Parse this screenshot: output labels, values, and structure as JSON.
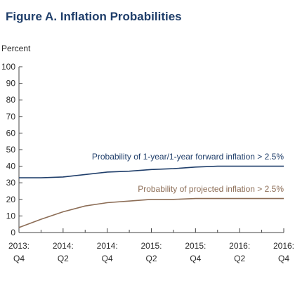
{
  "figure_title": "Figure A. Inflation Probabilities",
  "chart_data": {
    "type": "line",
    "title": "Figure A. Inflation Probabilities",
    "ylabel": "Percent",
    "ylim": [
      0,
      100
    ],
    "yticks": [
      0,
      10,
      20,
      30,
      40,
      50,
      60,
      70,
      80,
      90,
      100
    ],
    "xlim": [
      0,
      12
    ],
    "x_tick_labels": [
      {
        "x": 0,
        "line1": "2013:",
        "line2": "Q4"
      },
      {
        "x": 2,
        "line1": "2014:",
        "line2": "Q2"
      },
      {
        "x": 4,
        "line1": "2014:",
        "line2": "Q4"
      },
      {
        "x": 6,
        "line1": "2015:",
        "line2": "Q2"
      },
      {
        "x": 8,
        "line1": "2015:",
        "line2": "Q4"
      },
      {
        "x": 10,
        "line1": "2016:",
        "line2": "Q2"
      },
      {
        "x": 12,
        "line1": "2016:",
        "line2": "Q4"
      }
    ],
    "grid": false,
    "series": [
      {
        "name": "Probability of 1-year/1-year forward inflation > 2.5%",
        "color": "#1f3e6a",
        "label_anchor_x": 12,
        "label_y": 44,
        "points": [
          [
            0,
            33
          ],
          [
            1,
            33
          ],
          [
            2,
            33.5
          ],
          [
            3,
            35
          ],
          [
            4,
            36.5
          ],
          [
            5,
            37
          ],
          [
            6,
            38
          ],
          [
            7,
            38.5
          ],
          [
            8,
            39.5
          ],
          [
            9,
            40
          ],
          [
            10,
            40
          ],
          [
            11,
            40
          ],
          [
            12,
            40
          ]
        ]
      },
      {
        "name": "Probability of projected inflation > 2.5%",
        "color": "#8c6d56",
        "label_anchor_x": 12,
        "label_y": 24.5,
        "points": [
          [
            0,
            3
          ],
          [
            1,
            8
          ],
          [
            2,
            12.5
          ],
          [
            3,
            16
          ],
          [
            4,
            18
          ],
          [
            5,
            19
          ],
          [
            6,
            20
          ],
          [
            7,
            20
          ],
          [
            8,
            20.5
          ],
          [
            9,
            20.5
          ],
          [
            10,
            20.5
          ],
          [
            11,
            20.5
          ],
          [
            12,
            20.5
          ]
        ]
      }
    ]
  }
}
